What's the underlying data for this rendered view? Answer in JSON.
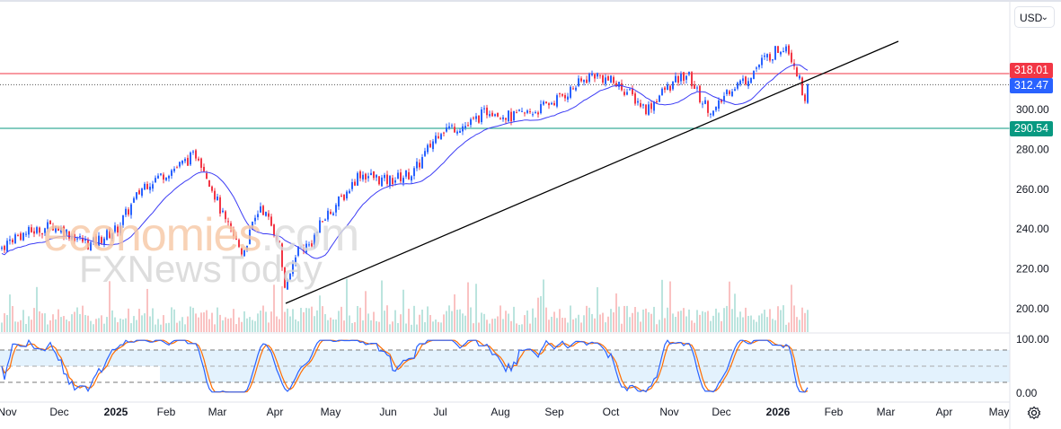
{
  "currency_selector": {
    "label": "USD",
    "icon": "chevron-down-icon"
  },
  "price_tags": {
    "resistance": "318.01",
    "last": "312.47",
    "support": "290.54"
  },
  "colors": {
    "up": "#2962ff",
    "down": "#f23645",
    "ma": "#3d3df5",
    "resistance": "#f23645",
    "support": "#089981",
    "stoch_k": "#2962ff",
    "stoch_d": "#ff6d00",
    "band": "#e3f2fd"
  },
  "watermark": {
    "line1": "economies",
    "line1b": ".com",
    "line2": "FXNewsToday"
  },
  "chart_data": {
    "type": "candlestick",
    "price_axis": {
      "ticks": [
        "300.00",
        "280.00",
        "260.00",
        "240.00",
        "220.00",
        "200.00"
      ],
      "range": [
        190,
        345
      ]
    },
    "time_axis": {
      "labels": [
        "Nov",
        "Dec",
        "2025",
        "Feb",
        "Mar",
        "Apr",
        "May",
        "Jun",
        "Jul",
        "Aug",
        "Sep",
        "Oct",
        "Nov",
        "Dec",
        "2026",
        "Feb",
        "Mar",
        "Apr",
        "May"
      ],
      "bold": [
        "2025",
        "2026"
      ]
    },
    "close_path": [
      [
        0,
        230
      ],
      [
        15,
        236
      ],
      [
        60,
        242
      ],
      [
        100,
        232
      ],
      [
        130,
        240
      ],
      [
        160,
        262
      ],
      [
        200,
        272
      ],
      [
        220,
        278
      ],
      [
        235,
        262
      ],
      [
        250,
        244
      ],
      [
        270,
        228
      ],
      [
        290,
        252
      ],
      [
        310,
        235
      ],
      [
        318,
        208
      ],
      [
        330,
        230
      ],
      [
        345,
        232
      ],
      [
        360,
        245
      ],
      [
        385,
        258
      ],
      [
        400,
        268
      ],
      [
        430,
        264
      ],
      [
        460,
        268
      ],
      [
        490,
        290
      ],
      [
        520,
        292
      ],
      [
        545,
        300
      ],
      [
        570,
        296
      ],
      [
        600,
        300
      ],
      [
        630,
        308
      ],
      [
        660,
        318
      ],
      [
        690,
        312
      ],
      [
        720,
        300
      ],
      [
        740,
        310
      ],
      [
        765,
        318
      ],
      [
        780,
        305
      ],
      [
        795,
        298
      ],
      [
        810,
        310
      ],
      [
        830,
        315
      ],
      [
        850,
        325
      ],
      [
        875,
        333
      ],
      [
        885,
        322
      ],
      [
        895,
        306
      ],
      [
        900,
        312
      ]
    ],
    "horizontal_lines": [
      318.01,
      290.54
    ],
    "last_price": 312.47,
    "trendline": {
      "from": [
        318,
        202
      ],
      "to": [
        1000,
        335
      ]
    },
    "stochastic": {
      "ticks": [
        "100.00",
        "0.00"
      ],
      "levels": [
        80,
        50,
        20
      ]
    }
  }
}
